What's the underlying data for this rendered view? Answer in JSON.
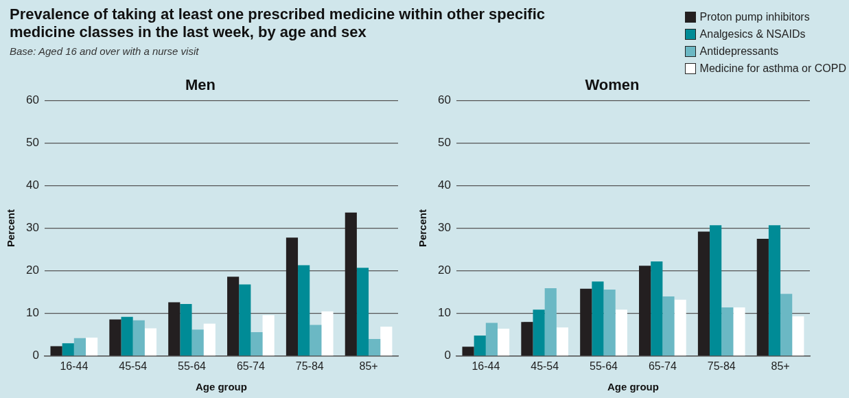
{
  "chart_data": [
    {
      "type": "bar",
      "title": "Men",
      "annotations": [
        "Prevalence of taking at least one prescribed medicine within other specific  medicine classes in the last week, by age and sex",
        "Base: Aged 16 and over with a nurse visit"
      ],
      "xlabel": "Age group",
      "ylabel": "Percent",
      "categories": [
        "16-44",
        "45-54",
        "55-64",
        "65-74",
        "75-84",
        "85+"
      ],
      "ylim": [
        0,
        60
      ],
      "yticks": [
        0,
        10,
        20,
        30,
        40,
        50,
        60
      ],
      "grid": "y",
      "legend": "top right",
      "series": [
        {
          "name": "Proton pump inhibitors",
          "color": "#231f20",
          "values": [
            2.3,
            8.6,
            12.6,
            18.6,
            27.8,
            33.7
          ]
        },
        {
          "name": "Analgesics & NSAIDs",
          "color": "#008b96",
          "values": [
            3.0,
            9.2,
            12.2,
            16.8,
            21.3,
            20.7
          ]
        },
        {
          "name": "Antidepressants",
          "color": "#6bb8c4",
          "values": [
            4.2,
            8.4,
            6.2,
            5.6,
            7.3,
            4.0
          ]
        },
        {
          "name": "Medicine for asthma or COPD",
          "color": "#ffffff",
          "values": [
            4.3,
            6.5,
            7.6,
            9.6,
            10.5,
            6.9
          ]
        }
      ]
    },
    {
      "type": "bar",
      "title": "Women",
      "xlabel": "Age group",
      "ylabel": "Percent",
      "categories": [
        "16-44",
        "45-54",
        "55-64",
        "65-74",
        "75-84",
        "85+"
      ],
      "ylim": [
        0,
        60
      ],
      "yticks": [
        0,
        10,
        20,
        30,
        40,
        50,
        60
      ],
      "grid": "y",
      "series": [
        {
          "color": "#231f20",
          "values": [
            2.2,
            8.0,
            15.8,
            21.2,
            29.2,
            27.5
          ]
        },
        {
          "color": "#008b96",
          "values": [
            4.8,
            10.9,
            17.5,
            22.2,
            30.7,
            30.7
          ]
        },
        {
          "color": "#6bb8c4",
          "values": [
            7.8,
            15.9,
            15.6,
            14.0,
            11.4,
            14.6
          ]
        },
        {
          "color": "#ffffff",
          "values": [
            6.4,
            6.7,
            10.9,
            13.2,
            11.4,
            9.3
          ]
        }
      ]
    }
  ]
}
